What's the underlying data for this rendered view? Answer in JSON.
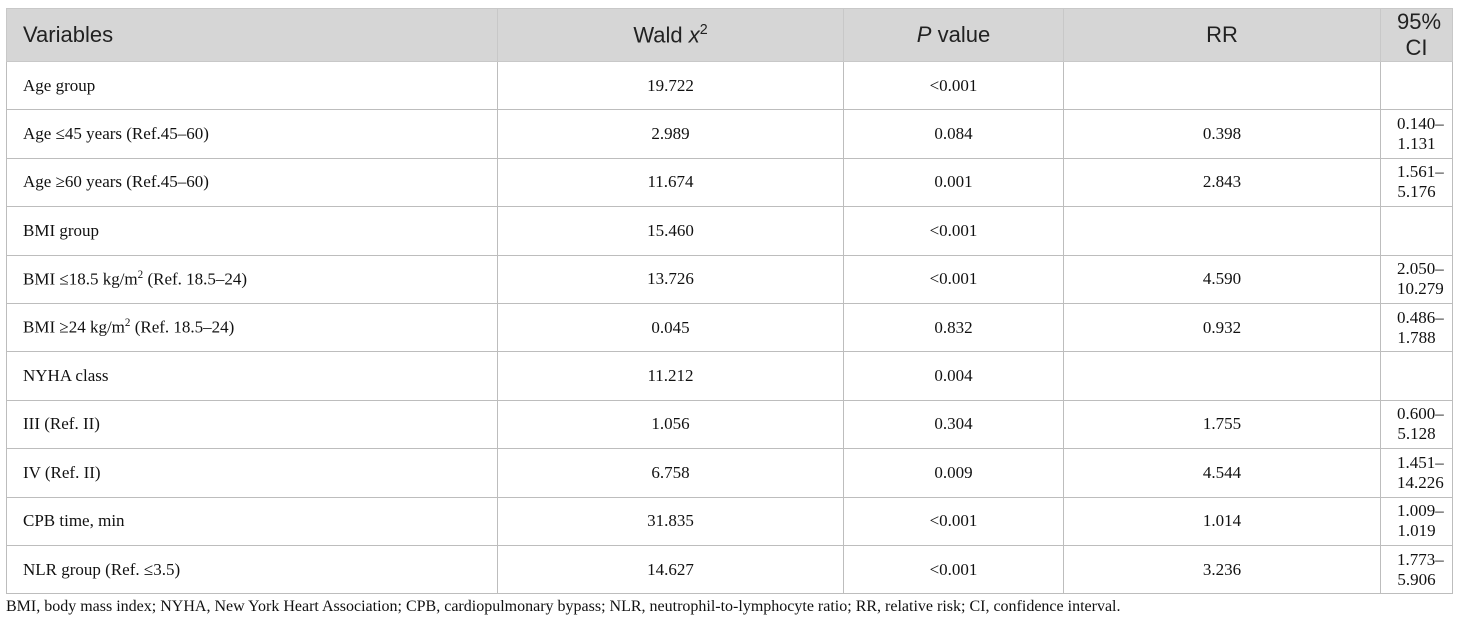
{
  "table": {
    "header": [
      [
        {
          "text": "Variables"
        }
      ],
      [
        {
          "text": "Wald "
        },
        {
          "text": "x",
          "italic": true
        },
        {
          "text": "2",
          "sup": true
        }
      ],
      [
        {
          "text": "P",
          "italic": true
        },
        {
          "text": " value"
        }
      ],
      [
        {
          "text": "RR"
        }
      ],
      [
        {
          "text": "95% CI"
        }
      ]
    ],
    "rows": [
      [
        "Age group",
        "19.722",
        "<0.001",
        null,
        null
      ],
      [
        "Age ≤45 years (Ref.45–60)",
        "2.989",
        "0.084",
        "0.398",
        "0.140–1.131"
      ],
      [
        "Age ≥60 years (Ref.45–60)",
        "11.674",
        "0.001",
        "2.843",
        "1.561–5.176"
      ],
      [
        "BMI group",
        "15.460",
        "<0.001",
        null,
        null
      ],
      [
        [
          {
            "text": "BMI ≤18.5 kg/m"
          },
          {
            "text": "2",
            "sup": true
          },
          {
            "text": " (Ref. 18.5–24)"
          }
        ],
        "13.726",
        "<0.001",
        "4.590",
        "2.050–10.279"
      ],
      [
        [
          {
            "text": "BMI ≥24 kg/m"
          },
          {
            "text": "2",
            "sup": true
          },
          {
            "text": " (Ref. 18.5–24)"
          }
        ],
        "0.045",
        "0.832",
        "0.932",
        "0.486–1.788"
      ],
      [
        "NYHA class",
        "11.212",
        "0.004",
        null,
        null
      ],
      [
        "III (Ref. II)",
        "1.056",
        "0.304",
        "1.755",
        "0.600–5.128"
      ],
      [
        "IV (Ref. II)",
        "6.758",
        "0.009",
        "4.544",
        "1.451–14.226"
      ],
      [
        "CPB time, min",
        "31.835",
        "<0.001",
        "1.014",
        "1.009–1.019"
      ],
      [
        "NLR group (Ref. ≤3.5)",
        "14.627",
        "<0.001",
        "3.236",
        "1.773–5.906"
      ]
    ]
  },
  "footnote": "BMI, body mass index; NYHA, New York Heart Association; CPB, cardiopulmonary bypass; NLR, neutrophil-to-lymphocyte ratio; RR, relative risk; CI, confidence interval."
}
